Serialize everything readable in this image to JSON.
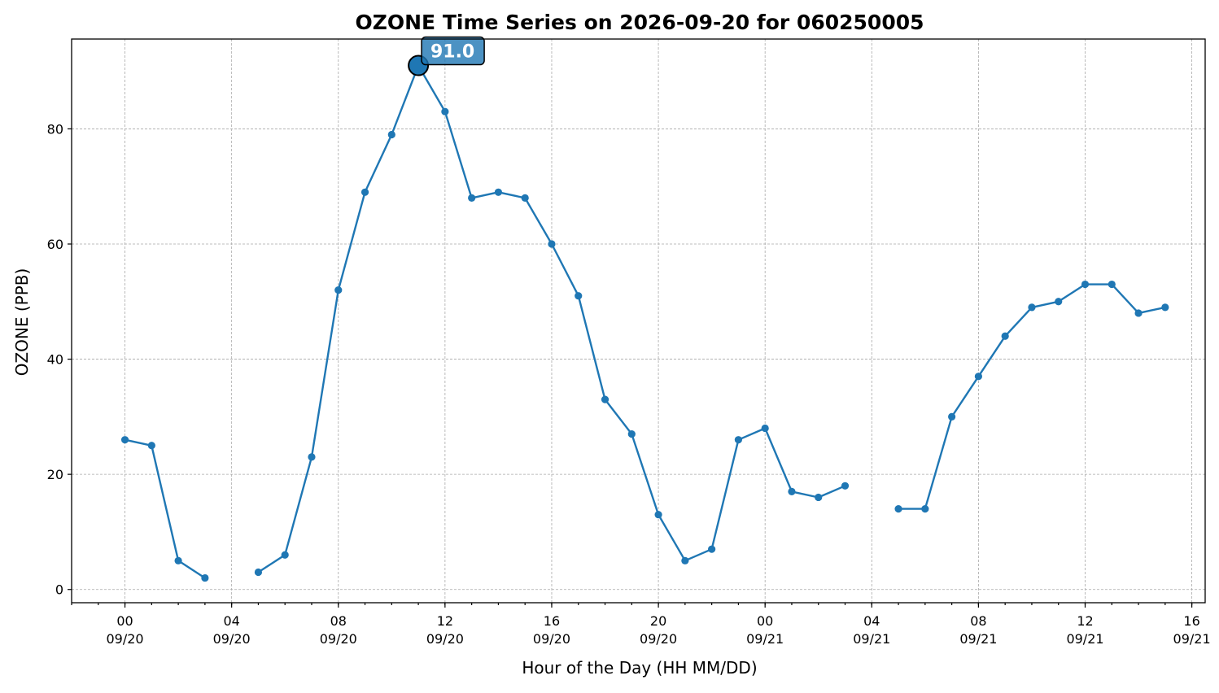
{
  "chart_data": {
    "type": "line",
    "title": "OZONE Time Series on 2026-09-20 for 060250005",
    "xlabel": "Hour of the Day (HH MM/DD)",
    "ylabel": "OZONE (PPB)",
    "grid": true,
    "series_color": "#1f77b4",
    "x_range": [
      "2026-09-19 22:00",
      "2026-09-21 16:30"
    ],
    "ylim": [
      -2.3,
      95.6
    ],
    "y_ticks": [
      0,
      20,
      40,
      60,
      80
    ],
    "x_ticks": [
      {
        "time": "2026-09-20 00:00",
        "hour": "00",
        "date": "09/20"
      },
      {
        "time": "2026-09-20 04:00",
        "hour": "04",
        "date": "09/20"
      },
      {
        "time": "2026-09-20 08:00",
        "hour": "08",
        "date": "09/20"
      },
      {
        "time": "2026-09-20 12:00",
        "hour": "12",
        "date": "09/20"
      },
      {
        "time": "2026-09-20 16:00",
        "hour": "16",
        "date": "09/20"
      },
      {
        "time": "2026-09-20 20:00",
        "hour": "20",
        "date": "09/20"
      },
      {
        "time": "2026-09-21 00:00",
        "hour": "00",
        "date": "09/21"
      },
      {
        "time": "2026-09-21 04:00",
        "hour": "04",
        "date": "09/21"
      },
      {
        "time": "2026-09-21 08:00",
        "hour": "08",
        "date": "09/21"
      },
      {
        "time": "2026-09-21 12:00",
        "hour": "12",
        "date": "09/21"
      },
      {
        "time": "2026-09-21 16:00",
        "hour": "16",
        "date": "09/21"
      }
    ],
    "points": [
      {
        "x": "2026-09-20 00:00",
        "y": 26
      },
      {
        "x": "2026-09-20 01:00",
        "y": 25
      },
      {
        "x": "2026-09-20 02:00",
        "y": 5
      },
      {
        "x": "2026-09-20 03:00",
        "y": 2
      },
      {
        "x": "2026-09-20 04:00",
        "y": null
      },
      {
        "x": "2026-09-20 05:00",
        "y": 3
      },
      {
        "x": "2026-09-20 06:00",
        "y": 6
      },
      {
        "x": "2026-09-20 07:00",
        "y": 23
      },
      {
        "x": "2026-09-20 08:00",
        "y": 52
      },
      {
        "x": "2026-09-20 09:00",
        "y": 69
      },
      {
        "x": "2026-09-20 10:00",
        "y": 79
      },
      {
        "x": "2026-09-20 11:00",
        "y": 91
      },
      {
        "x": "2026-09-20 12:00",
        "y": 83
      },
      {
        "x": "2026-09-20 13:00",
        "y": 68
      },
      {
        "x": "2026-09-20 14:00",
        "y": 69
      },
      {
        "x": "2026-09-20 15:00",
        "y": 68
      },
      {
        "x": "2026-09-20 16:00",
        "y": 60
      },
      {
        "x": "2026-09-20 17:00",
        "y": 51
      },
      {
        "x": "2026-09-20 18:00",
        "y": 33
      },
      {
        "x": "2026-09-20 19:00",
        "y": 27
      },
      {
        "x": "2026-09-20 20:00",
        "y": 13
      },
      {
        "x": "2026-09-20 21:00",
        "y": 5
      },
      {
        "x": "2026-09-20 22:00",
        "y": 7
      },
      {
        "x": "2026-09-20 23:00",
        "y": 26
      },
      {
        "x": "2026-09-21 00:00",
        "y": 28
      },
      {
        "x": "2026-09-21 01:00",
        "y": 17
      },
      {
        "x": "2026-09-21 02:00",
        "y": 16
      },
      {
        "x": "2026-09-21 03:00",
        "y": 18
      },
      {
        "x": "2026-09-21 04:00",
        "y": null
      },
      {
        "x": "2026-09-21 05:00",
        "y": 14
      },
      {
        "x": "2026-09-21 06:00",
        "y": 14
      },
      {
        "x": "2026-09-21 07:00",
        "y": 30
      },
      {
        "x": "2026-09-21 08:00",
        "y": 37
      },
      {
        "x": "2026-09-21 09:00",
        "y": 44
      },
      {
        "x": "2026-09-21 10:00",
        "y": 49
      },
      {
        "x": "2026-09-21 11:00",
        "y": 50
      },
      {
        "x": "2026-09-21 12:00",
        "y": 53
      },
      {
        "x": "2026-09-21 13:00",
        "y": 53
      },
      {
        "x": "2026-09-21 14:00",
        "y": 48
      },
      {
        "x": "2026-09-21 15:00",
        "y": 49
      }
    ],
    "peak": {
      "x": "2026-09-20 11:00",
      "y": 91.0,
      "label": "91.0"
    }
  }
}
